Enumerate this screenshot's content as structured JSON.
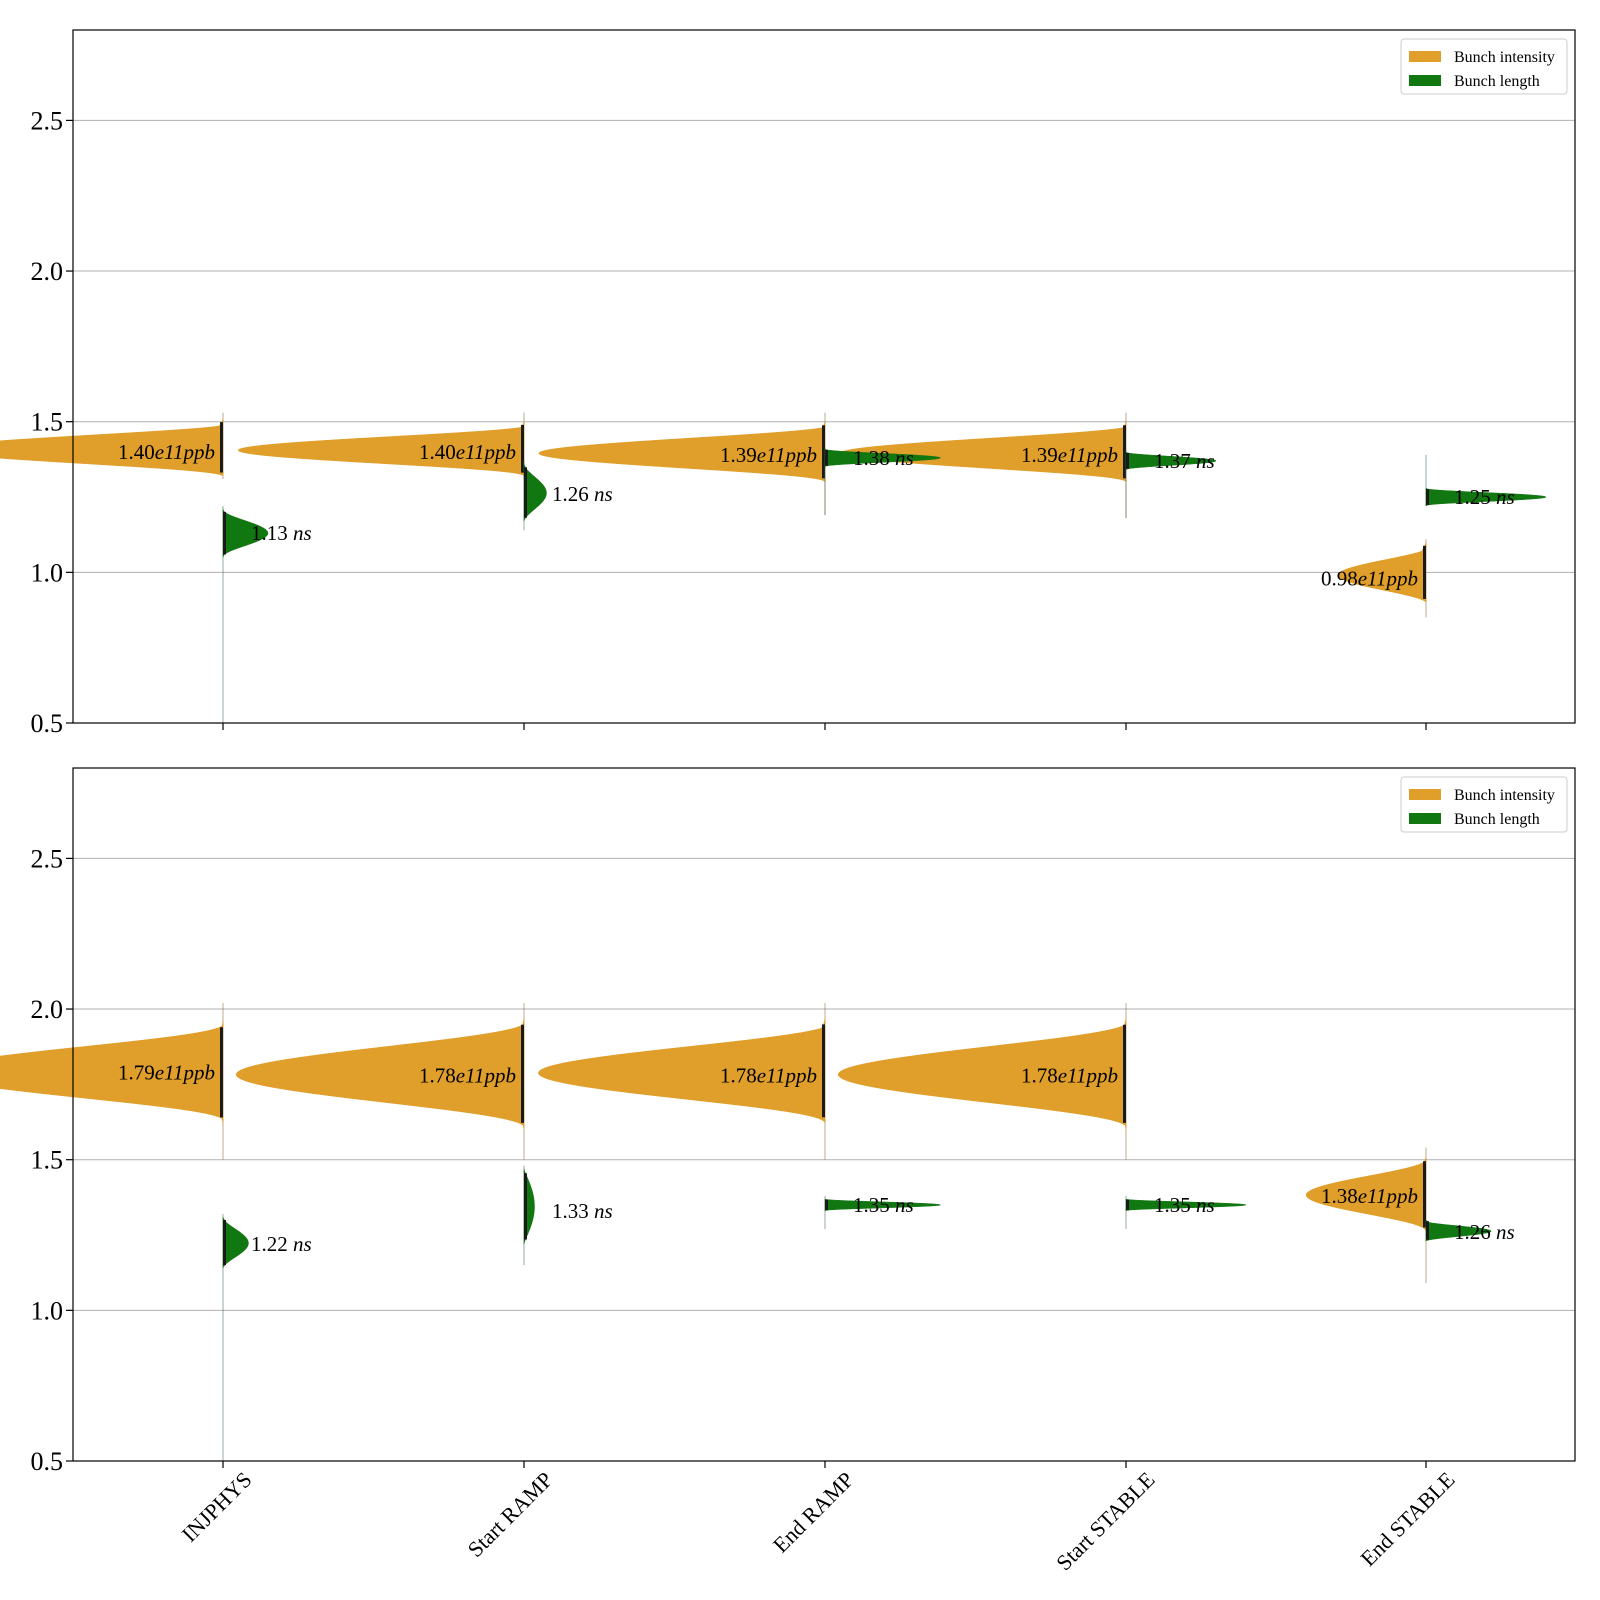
{
  "chart_data": [
    {
      "type": "violin",
      "ylim": [
        0.5,
        2.8
      ],
      "yticks": [
        0.5,
        1.0,
        1.5,
        2.0,
        2.5
      ],
      "grid": "y",
      "legend": {
        "placement": "top-right",
        "entries": [
          {
            "label": "Bunch intensity",
            "color": "#e09e2a"
          },
          {
            "label": "Bunch length",
            "color": "#117711"
          }
        ]
      },
      "categories": [
        "INJPHYS",
        "Start RAMP",
        "End RAMP",
        "Start STABLE",
        "End STABLE"
      ],
      "series": [
        {
          "name": "Bunch intensity",
          "side": "left",
          "color": "#e09e2a",
          "values": [
            1.4,
            1.4,
            1.39,
            1.39,
            0.98
          ],
          "labels": [
            {
              "num": "1.40",
              "it": "e11ppb"
            },
            {
              "num": "1.40",
              "it": "e11ppb"
            },
            {
              "num": "1.39",
              "it": "e11ppb"
            },
            {
              "num": "1.39",
              "it": "e11ppb"
            },
            {
              "num": "0.98",
              "it": "e11ppb"
            }
          ],
          "range": [
            [
              1.32,
              1.51
            ],
            [
              1.32,
              1.5
            ],
            [
              1.3,
              1.5
            ],
            [
              1.3,
              1.5
            ],
            [
              0.9,
              1.1
            ]
          ],
          "whisker": [
            [
              1.31,
              1.53
            ],
            [
              1.31,
              1.53
            ],
            [
              1.19,
              1.53
            ],
            [
              1.18,
              1.53
            ],
            [
              0.85,
              1.11
            ]
          ],
          "tip": [
            0.97,
            0.96,
            0.96,
            0.96,
            0.3
          ]
        },
        {
          "name": "Bunch length",
          "side": "right",
          "color": "#117711",
          "values": [
            1.13,
            1.26,
            1.38,
            1.37,
            1.25
          ],
          "labels": [
            {
              "num": "1.13",
              "it": "ns"
            },
            {
              "num": "1.26",
              "it": "ns"
            },
            {
              "num": "1.38",
              "it": "ns"
            },
            {
              "num": "1.37",
              "it": "ns"
            },
            {
              "num": "1.25",
              "it": "ns"
            }
          ],
          "range": [
            [
              1.05,
              1.21
            ],
            [
              1.17,
              1.36
            ],
            [
              1.35,
              1.41
            ],
            [
              1.34,
              1.4
            ],
            [
              1.22,
              1.28
            ]
          ],
          "whisker": [
            [
              0.5,
              1.22
            ],
            [
              1.14,
              1.37
            ],
            [
              1.19,
              1.41
            ],
            [
              1.18,
              1.41
            ],
            [
              1.22,
              1.39
            ]
          ],
          "tip": [
            0.15,
            0.075,
            0.385,
            0.3,
            0.4
          ]
        }
      ]
    },
    {
      "type": "violin",
      "ylim": [
        0.5,
        2.8
      ],
      "yticks": [
        0.5,
        1.0,
        1.5,
        2.0,
        2.5
      ],
      "grid": "y",
      "legend": {
        "placement": "top-right",
        "entries": [
          {
            "label": "Bunch intensity",
            "color": "#e09e2a"
          },
          {
            "label": "Bunch length",
            "color": "#117711"
          }
        ]
      },
      "categories": [
        "INJPHYS",
        "Start RAMP",
        "End RAMP",
        "Start STABLE",
        "End STABLE"
      ],
      "series": [
        {
          "name": "Bunch intensity",
          "side": "left",
          "color": "#e09e2a",
          "values": [
            1.79,
            1.78,
            1.78,
            1.78,
            1.38
          ],
          "labels": [
            {
              "num": "1.79",
              "it": "e11ppb"
            },
            {
              "num": "1.78",
              "it": "e11ppb"
            },
            {
              "num": "1.78",
              "it": "e11ppb"
            },
            {
              "num": "1.78",
              "it": "e11ppb"
            },
            {
              "num": "1.38",
              "it": "e11ppb"
            }
          ],
          "range": [
            [
              1.62,
              1.96
            ],
            [
              1.6,
              1.97
            ],
            [
              1.62,
              1.97
            ],
            [
              1.6,
              1.97
            ],
            [
              1.26,
              1.51
            ]
          ],
          "whisker": [
            [
              1.5,
              2.02
            ],
            [
              1.5,
              2.02
            ],
            [
              1.5,
              2.02
            ],
            [
              1.5,
              2.02
            ],
            [
              1.09,
              1.54
            ]
          ],
          "tip": [
            0.97,
            0.96,
            0.96,
            0.96,
            0.4
          ]
        },
        {
          "name": "Bunch length",
          "side": "right",
          "color": "#117711",
          "values": [
            1.22,
            1.33,
            1.35,
            1.35,
            1.26
          ],
          "labels": [
            {
              "num": "1.22",
              "it": "ns"
            },
            {
              "num": "1.33",
              "it": "ns"
            },
            {
              "num": "1.35",
              "it": "ns"
            },
            {
              "num": "1.35",
              "it": "ns"
            },
            {
              "num": "1.26",
              "it": "ns"
            }
          ],
          "range": [
            [
              1.14,
              1.31
            ],
            [
              1.22,
              1.47
            ],
            [
              1.33,
              1.37
            ],
            [
              1.33,
              1.37
            ],
            [
              1.23,
              1.3
            ]
          ],
          "whisker": [
            [
              0.5,
              1.32
            ],
            [
              1.15,
              1.48
            ],
            [
              1.27,
              1.38
            ],
            [
              1.27,
              1.38
            ],
            [
              1.23,
              1.3
            ]
          ],
          "tip": [
            0.085,
            0.035,
            0.385,
            0.4,
            0.22
          ]
        }
      ]
    }
  ]
}
